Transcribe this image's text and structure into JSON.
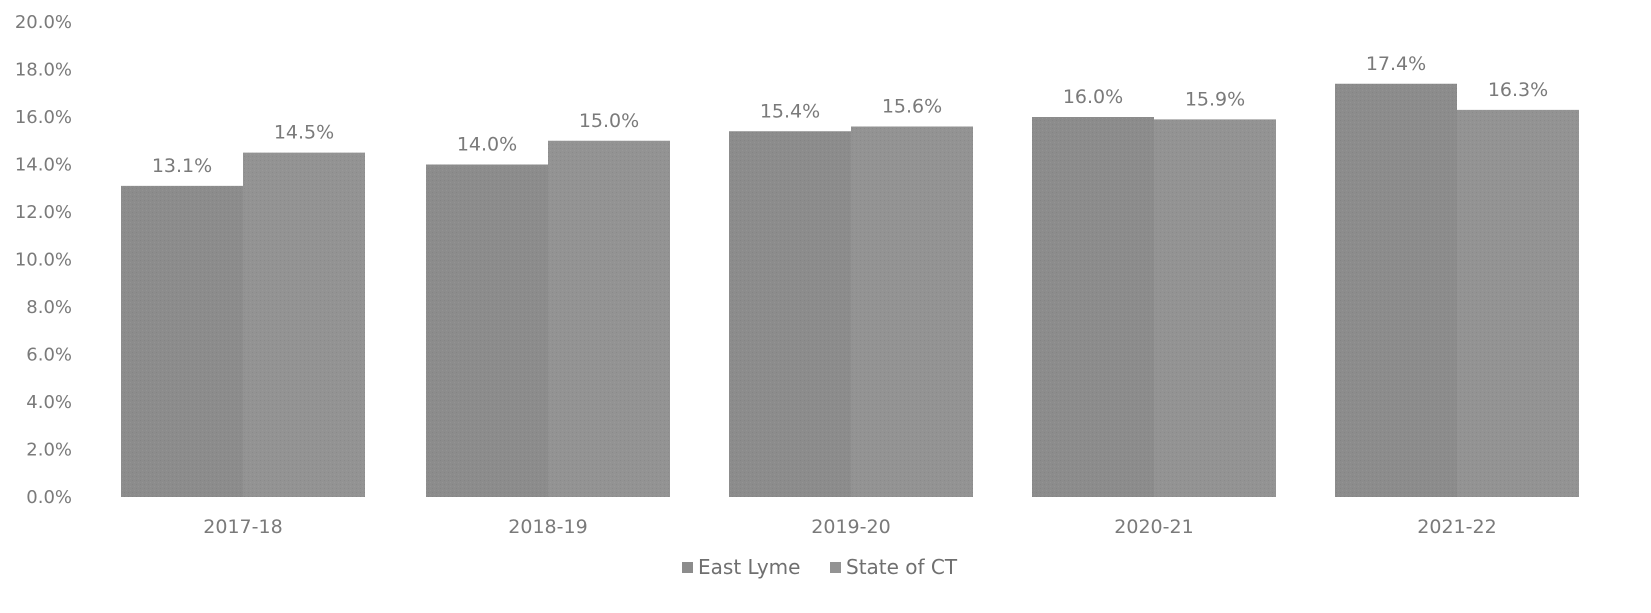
{
  "chart_data": {
    "type": "bar",
    "categories": [
      "2017-18",
      "2018-19",
      "2019-20",
      "2020-21",
      "2021-22"
    ],
    "series": [
      {
        "name": "East Lyme",
        "values": [
          13.1,
          14.0,
          15.4,
          16.0,
          17.4
        ],
        "labels": [
          "13.1%",
          "14.0%",
          "15.4%",
          "16.0%",
          "17.4%"
        ],
        "color": "#8c8c8c"
      },
      {
        "name": "State of CT",
        "values": [
          14.5,
          15.0,
          15.6,
          15.9,
          16.3
        ],
        "labels": [
          "14.5%",
          "15.0%",
          "15.6%",
          "15.9%",
          "16.3%"
        ],
        "color": "#939393"
      }
    ],
    "ylim": [
      0,
      20
    ],
    "yticks": [
      0,
      2,
      4,
      6,
      8,
      10,
      12,
      14,
      16,
      18,
      20
    ],
    "ytick_labels": [
      "0.0%",
      "2.0%",
      "4.0%",
      "6.0%",
      "8.0%",
      "10.0%",
      "12.0%",
      "14.0%",
      "16.0%",
      "18.0%",
      "20.0%"
    ],
    "grid": false,
    "legend": "bottom-center"
  }
}
